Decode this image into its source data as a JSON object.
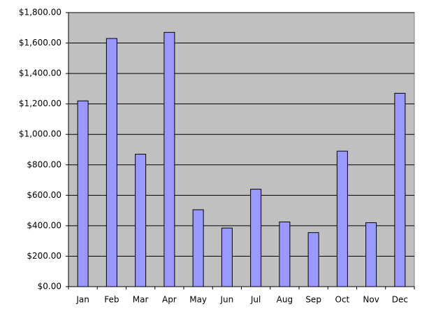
{
  "chart_data": {
    "type": "bar",
    "categories": [
      "Jan",
      "Feb",
      "Mar",
      "Apr",
      "May",
      "Jun",
      "Jul",
      "Aug",
      "Sep",
      "Oct",
      "Nov",
      "Dec"
    ],
    "values": [
      1220,
      1630,
      870,
      1670,
      505,
      385,
      640,
      425,
      355,
      890,
      420,
      1270
    ],
    "color": "#9999ff",
    "ylim": [
      0,
      1800
    ],
    "yticks": [
      {
        "value": 0,
        "label": "$0.00"
      },
      {
        "value": 200,
        "label": "$200.00"
      },
      {
        "value": 400,
        "label": "$400.00"
      },
      {
        "value": 600,
        "label": "$600.00"
      },
      {
        "value": 800,
        "label": "$800.00"
      },
      {
        "value": 1000,
        "label": "$1,000.00"
      },
      {
        "value": 1200,
        "label": "$1,200.00"
      },
      {
        "value": 1400,
        "label": "$1,400.00"
      },
      {
        "value": 1600,
        "label": "$1,600.00"
      },
      {
        "value": 1800,
        "label": "$1,800.00"
      }
    ],
    "grid": true
  }
}
